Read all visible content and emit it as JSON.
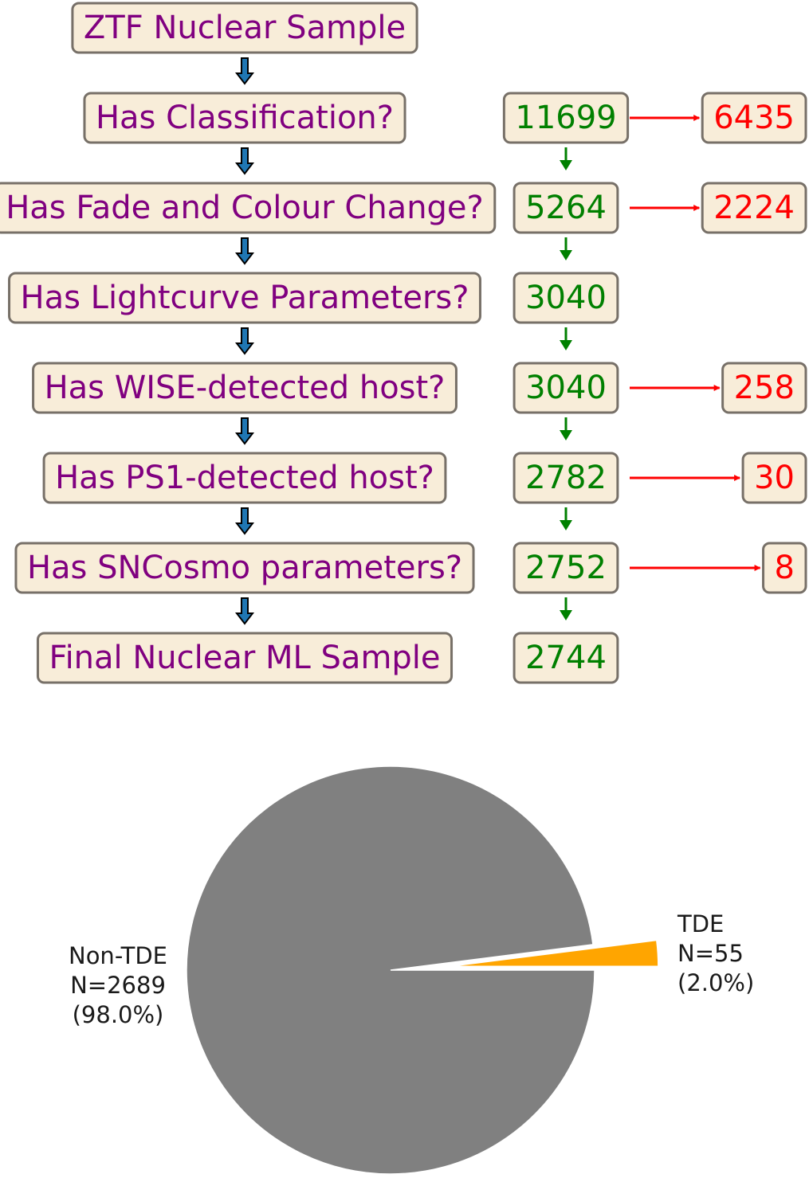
{
  "flowchart": {
    "stages": [
      {
        "label": "ZTF Nuclear Sample",
        "count": "",
        "removed": ""
      },
      {
        "label": "Has Classification?",
        "count": "11699",
        "removed": "6435"
      },
      {
        "label": "Has Fade and Colour Change?",
        "count": "5264",
        "removed": "2224"
      },
      {
        "label": "Has Lightcurve Parameters?",
        "count": "3040",
        "removed": ""
      },
      {
        "label": "Has WISE-detected host?",
        "count": "3040",
        "removed": "258"
      },
      {
        "label": "Has PS1-detected host?",
        "count": "2782",
        "removed": "30"
      },
      {
        "label": "Has SNCosmo parameters?",
        "count": "2752",
        "removed": "8"
      },
      {
        "label": "Final Nuclear ML Sample",
        "count": "2744",
        "removed": ""
      }
    ],
    "colors": {
      "box_fill": "#f8edd9",
      "box_border": "#777068",
      "stage_text": "#800080",
      "count_text": "#008000",
      "removed_text": "#ff0000",
      "down_arrow": "#1f77b4"
    }
  },
  "chart_data": {
    "type": "pie",
    "slices": [
      {
        "label": "Non-TDE",
        "count_label": "N=2689",
        "percent_label": "(98.0%)",
        "value": 2689,
        "color": "#808080"
      },
      {
        "label": "TDE",
        "count_label": "N=55",
        "percent_label": "(2.0%)",
        "value": 55,
        "color": "#ffa500",
        "exploded": true
      }
    ]
  }
}
